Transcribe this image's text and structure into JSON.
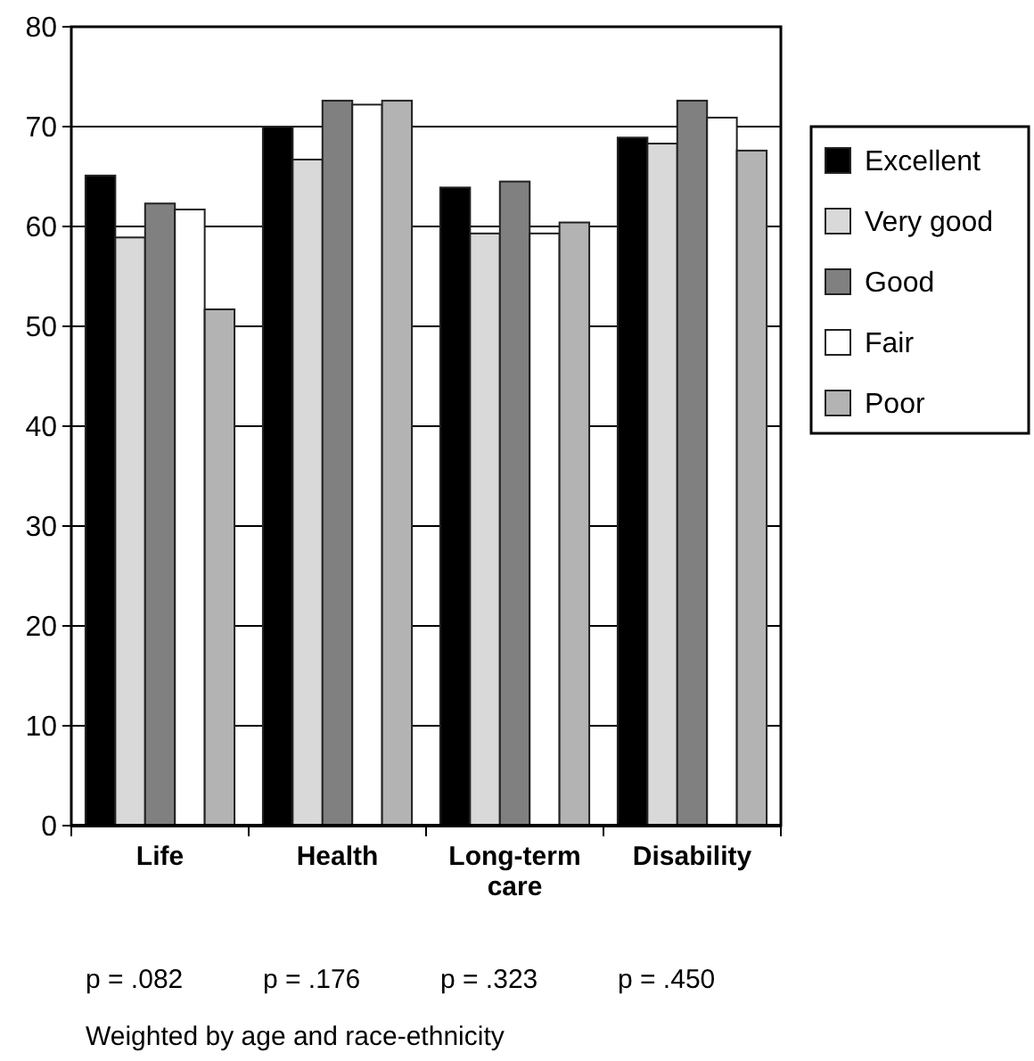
{
  "chart_data": {
    "type": "bar",
    "categories": [
      "Life",
      "Health",
      "Long-term care",
      "Disability"
    ],
    "series": [
      {
        "name": "Excellent",
        "color": "#000000",
        "values": [
          65.1,
          70,
          63.9,
          68.9
        ]
      },
      {
        "name": "Very good",
        "color": "#d9d9d9",
        "values": [
          58.9,
          66.7,
          59.3,
          68.3
        ]
      },
      {
        "name": "Good",
        "color": "#808080",
        "values": [
          62.3,
          72.6,
          64.5,
          72.6
        ]
      },
      {
        "name": "Fair",
        "color": "#ffffff",
        "values": [
          61.7,
          72.2,
          59.3,
          70.9
        ]
      },
      {
        "name": "Poor",
        "color": "#b3b3b3",
        "values": [
          51.7,
          72.6,
          60.4,
          67.6
        ]
      }
    ],
    "ylim": [
      0,
      80
    ],
    "yticks": [
      0,
      10,
      20,
      30,
      40,
      50,
      60,
      70,
      80
    ],
    "grid": "y",
    "legend": "right",
    "annotations": [
      "p = .082",
      "p = .176",
      "p = .323",
      "p = .450",
      "Weighted by age and race-ethnicity"
    ]
  }
}
